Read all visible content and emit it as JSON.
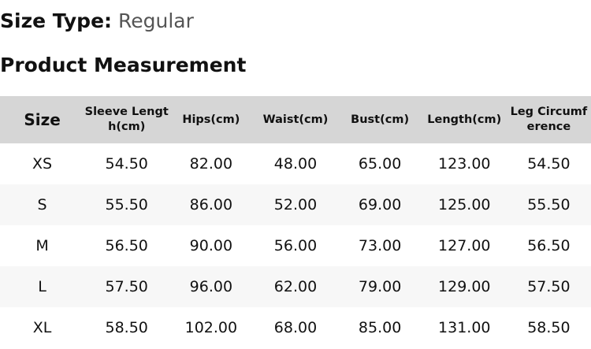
{
  "size_type": {
    "label": "Size Type:",
    "value": "Regular"
  },
  "section_title": "Product Measurement",
  "table": {
    "headers": [
      "Size",
      "Sleeve Length(cm)",
      "Hips(cm)",
      "Waist(cm)",
      "Bust(cm)",
      "Length(cm)",
      "Leg Circumference"
    ],
    "rows": [
      [
        "XS",
        "54.50",
        "82.00",
        "48.00",
        "65.00",
        "123.00",
        "54.50"
      ],
      [
        "S",
        "55.50",
        "86.00",
        "52.00",
        "69.00",
        "125.00",
        "55.50"
      ],
      [
        "M",
        "56.50",
        "90.00",
        "56.00",
        "73.00",
        "127.00",
        "56.50"
      ],
      [
        "L",
        "57.50",
        "96.00",
        "62.00",
        "79.00",
        "129.00",
        "57.50"
      ],
      [
        "XL",
        "58.50",
        "102.00",
        "68.00",
        "85.00",
        "131.00",
        "58.50"
      ]
    ]
  }
}
